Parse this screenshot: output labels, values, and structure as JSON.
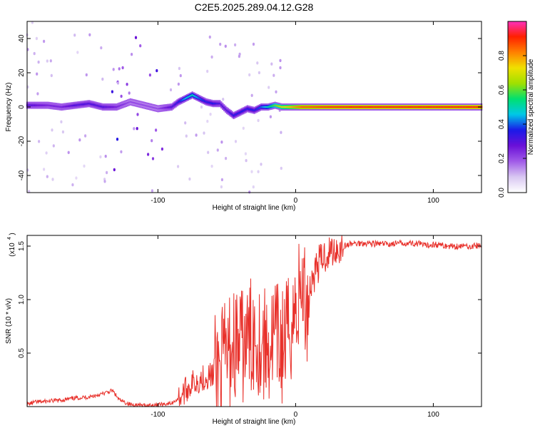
{
  "title": "C2E5.2025.289.04.12.G28",
  "colors": {
    "axis": "#000000",
    "snr_line": "#e8302a",
    "trace_core": "#e8302a",
    "colormap": [
      "#ffffff",
      "#d8c6f2",
      "#a05ae8",
      "#6a10d8",
      "#1a1ae8",
      "#00c8e8",
      "#00e070",
      "#a0e000",
      "#f0e000",
      "#ff8000",
      "#ff2000",
      "#ff30c0"
    ]
  },
  "colorbar": {
    "label": "Normalized spectral amplitude",
    "ticks": [
      "0.0",
      "0.2",
      "0.4",
      "0.6",
      "0.8"
    ],
    "tick_values": [
      0.0,
      0.2,
      0.4,
      0.6,
      0.8
    ],
    "range": [
      0,
      1
    ]
  },
  "chart_data": [
    {
      "type": "heatmap",
      "title": "C2E5.2025.289.04.12.G28",
      "xlabel": "Height of straight line (km)",
      "ylabel": "Frequency (Hz)",
      "xlim": [
        -195,
        135
      ],
      "ylim": [
        -50,
        50
      ],
      "x_ticks": [
        -100,
        0,
        100
      ],
      "x_tick_labels": [
        "-100",
        "0",
        "100"
      ],
      "y_ticks": [
        -40,
        -20,
        0,
        20,
        40
      ],
      "y_tick_labels": [
        "-40",
        "-20",
        "0",
        "20",
        "40"
      ],
      "grid": false,
      "series": [
        {
          "name": "",
          "x": [
            -195,
            -180,
            -170,
            -160,
            -150,
            -140,
            -130,
            -120,
            -110,
            -100,
            -90,
            -85,
            -80,
            -75,
            -70,
            -65,
            -60,
            -55,
            -50,
            -45,
            -40,
            -35,
            -30,
            -25,
            -20,
            -15,
            -10,
            -5,
            0,
            5,
            10,
            20,
            40,
            60,
            80,
            100,
            120,
            135
          ],
          "y": [
            1,
            1,
            0,
            1,
            2,
            0,
            0,
            3,
            1,
            -1,
            0,
            3,
            5,
            7,
            5,
            3,
            2,
            2,
            -2,
            -5,
            -3,
            -1,
            -2,
            0,
            0,
            1,
            0,
            0,
            0,
            0,
            0,
            0,
            0,
            0,
            0,
            0,
            0,
            0
          ],
          "amplitude": [
            0.3,
            0.25,
            0.25,
            0.3,
            0.3,
            0.3,
            0.25,
            0.2,
            0.2,
            0.2,
            0.3,
            0.35,
            0.45,
            0.5,
            0.4,
            0.35,
            0.35,
            0.3,
            0.3,
            0.35,
            0.35,
            0.35,
            0.35,
            0.4,
            0.5,
            0.6,
            0.7,
            0.75,
            0.8,
            0.85,
            0.85,
            0.88,
            0.9,
            0.9,
            0.9,
            0.9,
            0.9,
            0.9
          ]
        }
      ]
    },
    {
      "type": "line",
      "xlabel": "Height of straight line (km)",
      "ylabel": "SNR (10 * v/v)",
      "y_multiplier_label": "(x10",
      "y_multiplier_exp": "4",
      "xlim": [
        -195,
        135
      ],
      "ylim": [
        0,
        1.6
      ],
      "x_ticks": [
        -100,
        0,
        100
      ],
      "x_tick_labels": [
        "-100",
        "0",
        "100"
      ],
      "y_ticks": [
        0.5,
        1.0,
        1.5
      ],
      "y_tick_labels": [
        "0.5",
        "1.0",
        "1.5"
      ],
      "grid": false,
      "series": [
        {
          "name": "",
          "x": [
            -195,
            -190,
            -180,
            -170,
            -160,
            -150,
            -140,
            -133,
            -128,
            -120,
            -110,
            -100,
            -90,
            -85,
            -80,
            -75,
            -70,
            -65,
            -60,
            -55,
            -50,
            -45,
            -40,
            -35,
            -30,
            -25,
            -20,
            -15,
            -10,
            -5,
            0,
            5,
            8,
            10,
            15,
            20,
            25,
            30,
            35,
            40,
            50,
            60,
            70,
            80,
            90,
            95,
            100,
            110,
            120,
            130,
            135
          ],
          "y": [
            0.02,
            0.04,
            0.05,
            0.06,
            0.08,
            0.09,
            0.12,
            0.15,
            0.06,
            0.02,
            0.01,
            0.02,
            0.03,
            0.08,
            0.15,
            0.22,
            0.25,
            0.28,
            0.3,
            0.35,
            0.45,
            0.6,
            0.55,
            0.6,
            0.7,
            0.6,
            0.55,
            0.65,
            0.55,
            0.7,
            0.9,
            1.15,
            0.9,
            1.1,
            1.3,
            1.4,
            1.45,
            1.48,
            1.5,
            1.52,
            1.53,
            1.52,
            1.52,
            1.53,
            1.52,
            1.5,
            1.52,
            1.5,
            1.5,
            1.5,
            1.51
          ]
        }
      ]
    }
  ]
}
